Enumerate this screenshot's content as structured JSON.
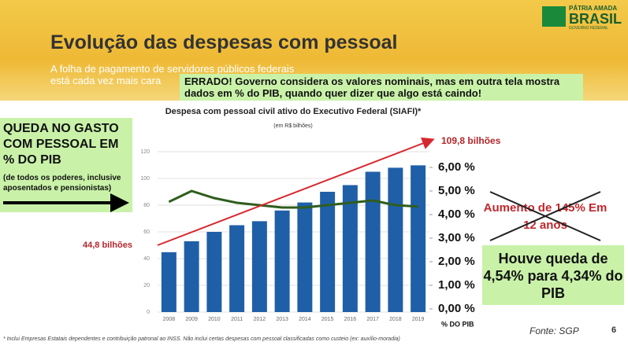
{
  "slide": {
    "title": "Evolução das despesas com pessoal",
    "subtitle": "A folha de pagamento de servidores públicos federais está cada vez mais cara",
    "logo_top": "PÁTRIA AMADA",
    "logo_main": "BRASIL",
    "logo_bottom": "GOVERNO FEDERAL",
    "callout": "ERRADO! Governo considera os valores nominais, mas em outra tela mostra dados em % do PIB, quando quer dizer que algo está caindo!",
    "left_heading": "QUEDA NO GASTO COM PESSOAL EM % DO PIB",
    "left_note": "(de todos os poderes, inclusive aposentados e pensionistas)",
    "crossed": "Aumento de 145% Em 12 anos",
    "conclusion": "Houve queda de 4,54% para 4,34% do PIB",
    "footnote": "* Inclui Empresas Estatais dependentes e contribuição patronal ao INSS. Não inclui certas despesas com pessoal classificadas como custeio (ex: auxílio-moradia)",
    "source": "Fonte: SGP",
    "page": "6"
  },
  "chart_data": {
    "type": "bar",
    "title": "Despesa com pessoal civil ativo do Executivo Federal (SIAFI)*",
    "subtitle": "(em R$ bilhões)",
    "categories": [
      "2008",
      "2009",
      "2010",
      "2011",
      "2012",
      "2013",
      "2014",
      "2015",
      "2016",
      "2017",
      "2018",
      "2019"
    ],
    "series": [
      {
        "color": "#1f5fa8",
        "values": [
          44.8,
          53,
          60,
          65,
          68,
          76,
          82,
          90,
          95,
          105,
          108,
          109.8
        ]
      },
      {
        "type": "line",
        "axis": "y2",
        "color": "#2f5d1e",
        "values": [
          4.54,
          5.0,
          4.7,
          4.5,
          4.4,
          4.3,
          4.3,
          4.4,
          4.5,
          4.6,
          4.4,
          4.34
        ]
      }
    ],
    "ylim": [
      0,
      120
    ],
    "yticks": [
      0,
      20,
      40,
      60,
      80,
      100,
      120
    ],
    "y2lim": [
      0,
      6
    ],
    "y2ticks": [
      {
        "value": 0,
        "label": "0,00 %"
      },
      {
        "value": 1,
        "label": "1,00 %"
      },
      {
        "value": 2,
        "label": "2,00 %"
      },
      {
        "value": 3,
        "label": "3,00 %"
      },
      {
        "value": 4,
        "label": "4,00 %"
      },
      {
        "value": 5,
        "label": "5,00 %"
      },
      {
        "value": 6,
        "label": "6,00 %"
      }
    ],
    "y2label": "% DO PIB",
    "annotations": [
      "44,8 bilhões",
      "109,8 bilhões"
    ],
    "grid": true
  }
}
